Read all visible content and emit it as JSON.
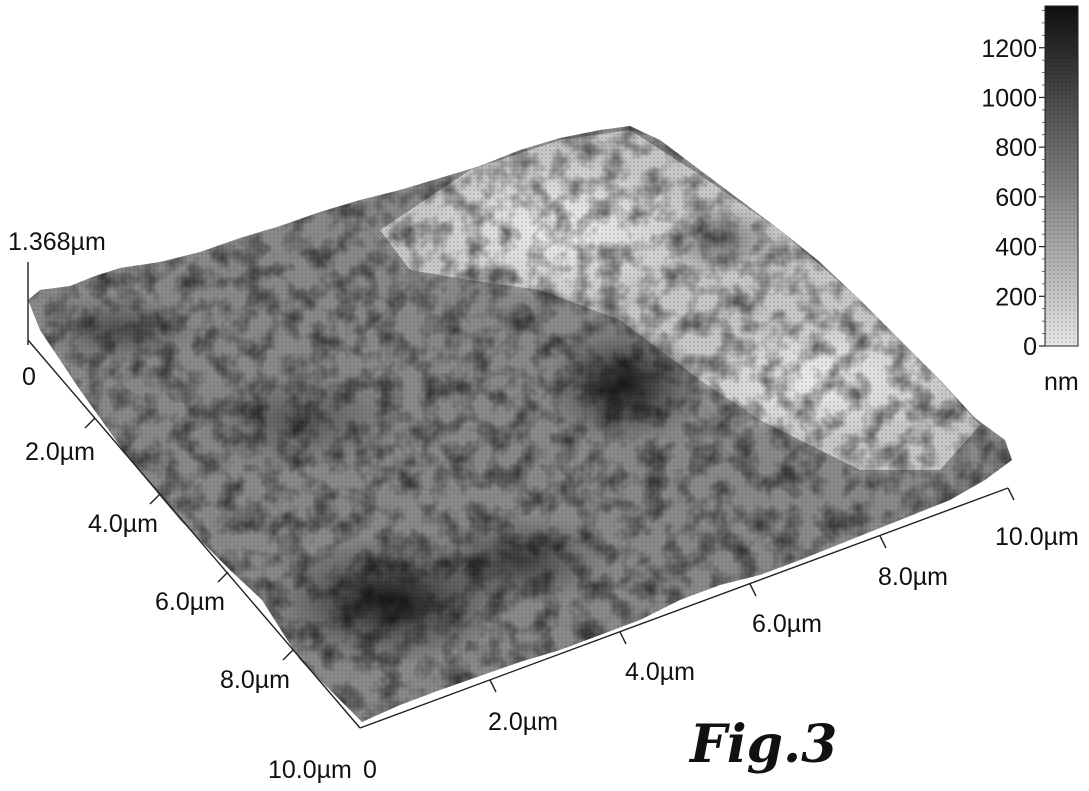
{
  "chart_data": {
    "type": "surface-3d",
    "description_label": "Fig.3",
    "z_max_label": "1.368µm",
    "x_axis": {
      "ticks": [
        "2.0µm",
        "4.0µm",
        "6.0µm",
        "8.0µm",
        "10.0µm"
      ],
      "origin_label": "0",
      "range": [
        0,
        10.0
      ],
      "unit": "µm"
    },
    "y_axis": {
      "ticks": [
        "0",
        "2.0µm",
        "4.0µm",
        "6.0µm",
        "8.0µm",
        "10.0µm"
      ],
      "range": [
        0,
        10.0
      ],
      "unit": "µm"
    },
    "colorbar": {
      "ticks": [
        "0",
        "200",
        "400",
        "600",
        "800",
        "1000",
        "1200"
      ],
      "values": [
        0,
        200,
        400,
        600,
        800,
        1000,
        1200
      ],
      "unit": "nm",
      "range": [
        0,
        1368
      ],
      "colors": [
        "#e6e6e6",
        "#0f0f0f"
      ]
    }
  }
}
